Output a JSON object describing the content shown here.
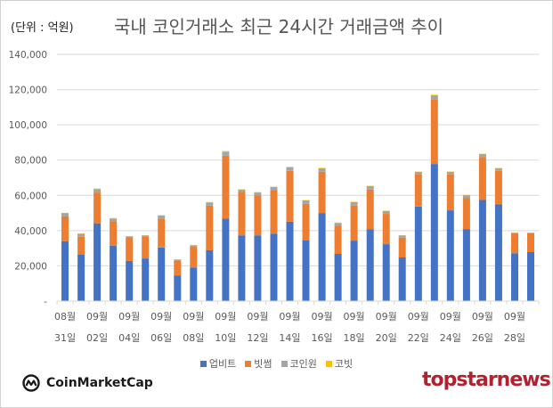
{
  "header": {
    "unit_label": "(단위 : 억원)",
    "title": "국내 코인거래소 최근 24시간 거래금액 추이"
  },
  "chart_data": {
    "type": "bar",
    "stacked": true,
    "title": "국내 코인거래소 최근 24시간 거래금액 추이",
    "ylabel": "(단위 : 억원)",
    "xlabel": "",
    "ylim": [
      0,
      140000
    ],
    "yticks": [
      0,
      20000,
      40000,
      60000,
      80000,
      100000,
      120000,
      140000
    ],
    "ytick_labels": [
      "-",
      "20,000",
      "40,000",
      "60,000",
      "80,000",
      "100,000",
      "120,000",
      "140,000"
    ],
    "grid": true,
    "legend_position": "bottom",
    "categories": [
      "08/31",
      "09/01",
      "09/02",
      "09/03",
      "09/04",
      "09/05",
      "09/06",
      "09/07",
      "09/08",
      "09/09",
      "09/10",
      "09/11",
      "09/12",
      "09/13",
      "09/14",
      "09/15",
      "09/16",
      "09/17",
      "09/18",
      "09/19",
      "09/20",
      "09/21",
      "09/22",
      "09/23",
      "09/24",
      "09/25",
      "09/26",
      "09/27",
      "09/28",
      "09/29"
    ],
    "xtick_labels": [
      {
        "month": "08월",
        "day": "31일"
      },
      {
        "month": "09월",
        "day": "02일"
      },
      {
        "month": "09월",
        "day": "04일"
      },
      {
        "month": "09월",
        "day": "06일"
      },
      {
        "month": "09월",
        "day": "08일"
      },
      {
        "month": "09월",
        "day": "10일"
      },
      {
        "month": "09월",
        "day": "12일"
      },
      {
        "month": "09월",
        "day": "14일"
      },
      {
        "month": "09월",
        "day": "16일"
      },
      {
        "month": "09월",
        "day": "18일"
      },
      {
        "month": "09월",
        "day": "20일"
      },
      {
        "month": "09월",
        "day": "22일"
      },
      {
        "month": "09월",
        "day": "24일"
      },
      {
        "month": "09월",
        "day": "26일"
      },
      {
        "month": "09월",
        "day": "28일"
      }
    ],
    "series": [
      {
        "name": "업비트",
        "color": "#4472C4",
        "values": [
          34000,
          26300,
          44100,
          31400,
          22800,
          24200,
          30400,
          14400,
          19100,
          28900,
          46900,
          37300,
          37300,
          38300,
          45100,
          34400,
          50000,
          26800,
          34300,
          40700,
          32300,
          24800,
          53700,
          77800,
          51500,
          40900,
          57400,
          55000,
          27200,
          27800
        ]
      },
      {
        "name": "빗썸",
        "color": "#ED7D31",
        "values": [
          14100,
          10200,
          17500,
          13900,
          13400,
          12600,
          16500,
          8700,
          12100,
          25300,
          35500,
          24800,
          22600,
          24700,
          28800,
          20800,
          23400,
          15900,
          19900,
          22600,
          17200,
          11200,
          18200,
          36600,
          20400,
          17500,
          24300,
          18900,
          11300,
          10700
        ]
      },
      {
        "name": "코인원",
        "color": "#A5A5A5",
        "values": [
          1700,
          1700,
          2000,
          1600,
          600,
          500,
          1600,
          500,
          500,
          1800,
          2400,
          1200,
          1700,
          1700,
          2000,
          1900,
          1900,
          1700,
          2000,
          1900,
          1600,
          1300,
          1400,
          2300,
          1400,
          1700,
          1700,
          1400,
          300,
          300
        ]
      },
      {
        "name": "코빗",
        "color": "#FFC000",
        "values": [
          300,
          200,
          300,
          200,
          100,
          100,
          200,
          100,
          100,
          200,
          300,
          200,
          200,
          200,
          300,
          200,
          300,
          200,
          200,
          200,
          200,
          100,
          200,
          400,
          200,
          200,
          200,
          200,
          100,
          100
        ]
      }
    ]
  },
  "legend": [
    {
      "label": "업비트",
      "color": "#4472C4"
    },
    {
      "label": "빗썸",
      "color": "#ED7D31"
    },
    {
      "label": "코인원",
      "color": "#A5A5A5"
    },
    {
      "label": "코빗",
      "color": "#FFC000"
    }
  ],
  "footer": {
    "left_logo": "CoinMarketCap",
    "right_logo": "topstarnews"
  }
}
